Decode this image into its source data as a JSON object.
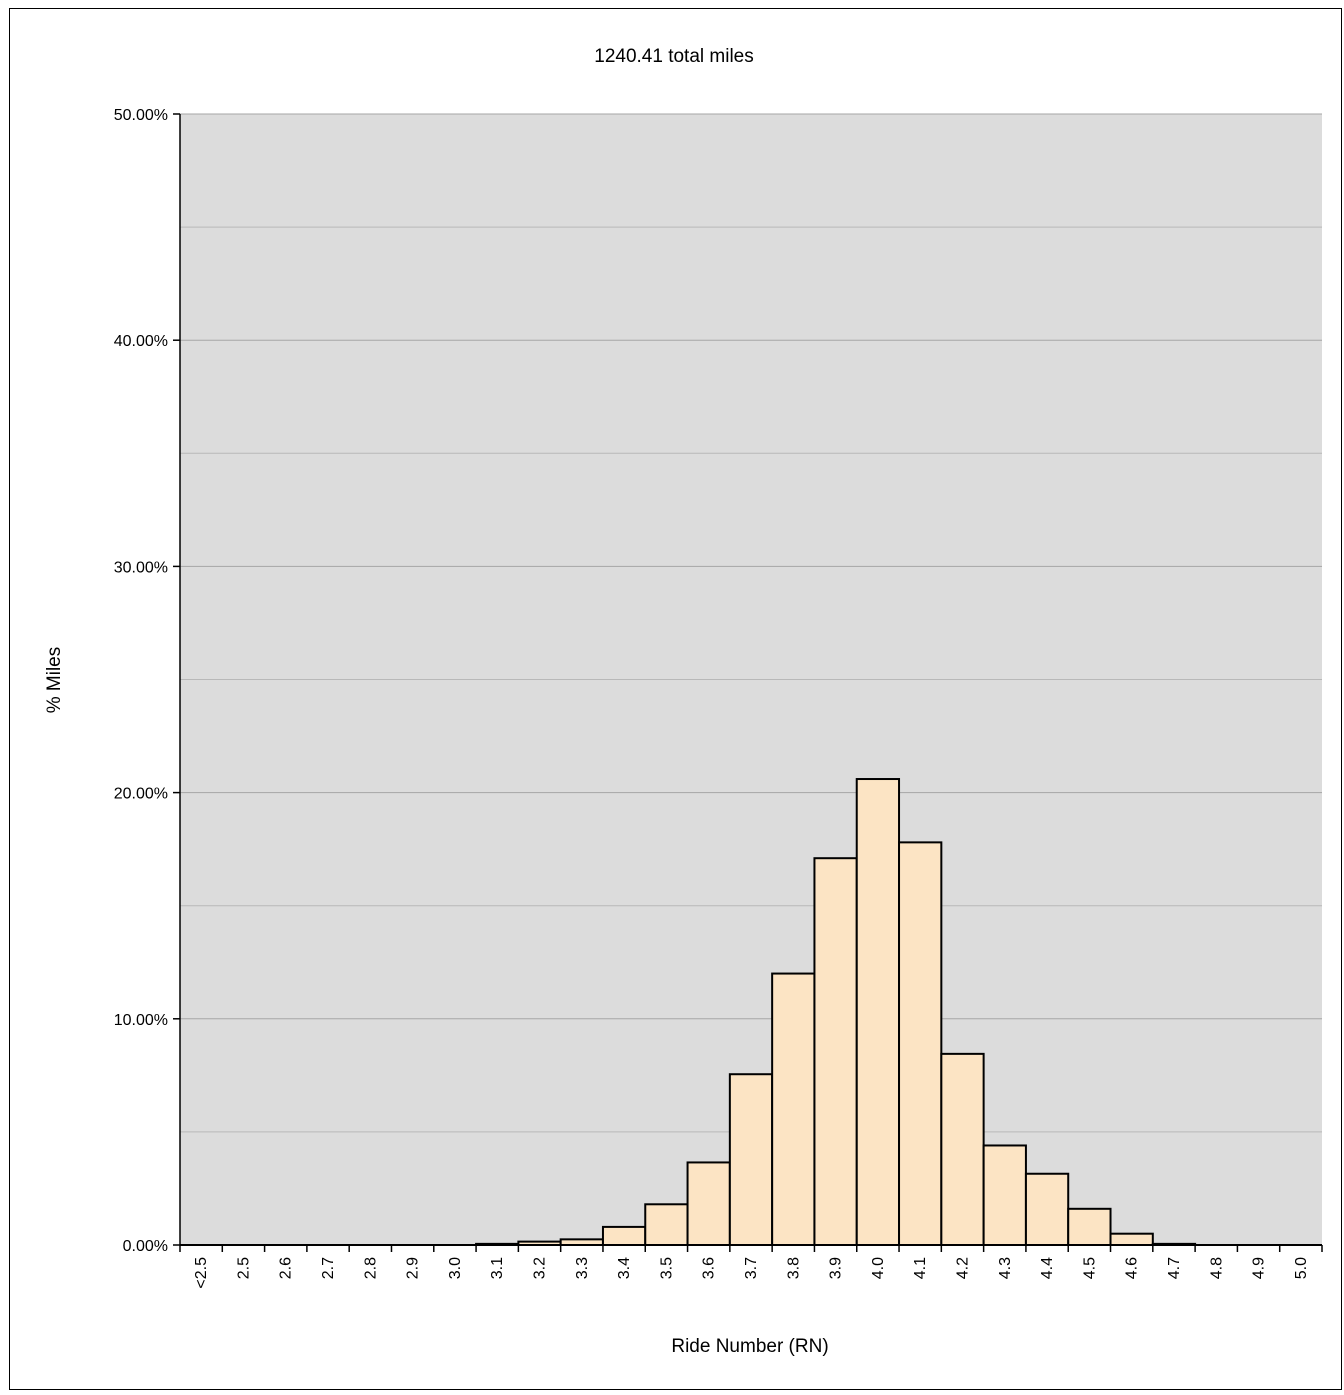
{
  "chart_data": {
    "type": "bar",
    "title": "1240.41 total miles",
    "xlabel": "Ride Number (RN)",
    "ylabel": "% Miles",
    "ylim": [
      0,
      50
    ],
    "y_tick_values": [
      0,
      10,
      20,
      30,
      40,
      50
    ],
    "y_tick_labels": [
      "0.00%",
      "10.00%",
      "20.00%",
      "30.00%",
      "40.00%",
      "50.00%"
    ],
    "y_minor_gridlines": [
      5,
      15,
      25,
      35,
      45
    ],
    "grid": true,
    "legend": "none",
    "categories": [
      "<2.5",
      "2.5",
      "2.6",
      "2.7",
      "2.8",
      "2.9",
      "3.0",
      "3.1",
      "3.2",
      "3.3",
      "3.4",
      "3.5",
      "3.6",
      "3.7",
      "3.8",
      "3.9",
      "4.0",
      "4.1",
      "4.2",
      "4.3",
      "4.4",
      "4.5",
      "4.6",
      "4.7",
      "4.8",
      "4.9",
      "5.0"
    ],
    "values": [
      0,
      0,
      0,
      0,
      0,
      0,
      0,
      0.05,
      0.15,
      0.25,
      0.8,
      1.8,
      3.65,
      7.55,
      12.0,
      17.1,
      20.6,
      17.8,
      8.45,
      4.4,
      3.15,
      1.6,
      0.5,
      0.05,
      0,
      0,
      0
    ],
    "colors": {
      "bar_fill": "#fce4c4",
      "bar_stroke": "#000000",
      "plot_background": "#dcdcdc",
      "gridline": "#a6a6a6"
    }
  }
}
